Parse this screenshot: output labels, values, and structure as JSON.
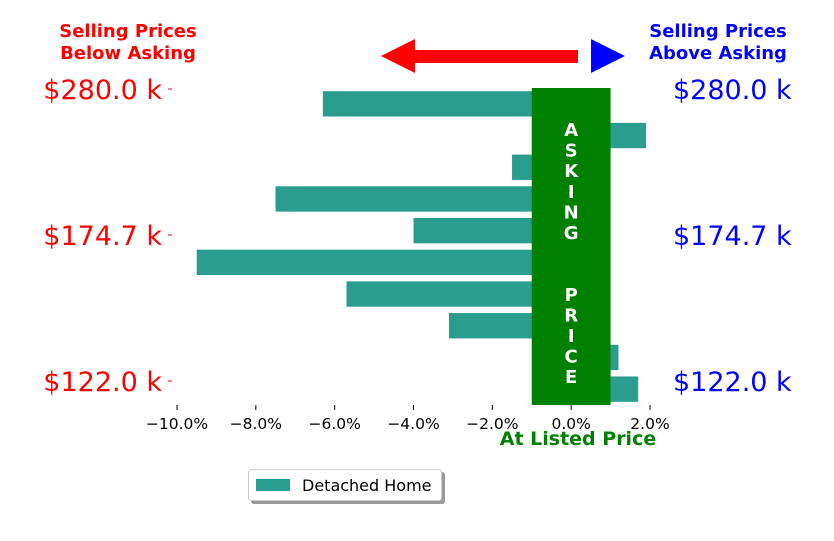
{
  "header": {
    "below_asking": "Selling Prices\nBelow Asking",
    "above_asking": "Selling Prices\nAbove Asking"
  },
  "colors": {
    "bar": "#2a9d8f",
    "asking_band": "#008000",
    "below": "#ff0000",
    "above": "#0000ff",
    "arrow_left": "#ff0000",
    "arrow_right": "#0000ff"
  },
  "icons": {
    "left": "left-arrow-icon",
    "right": "right-arrow-icon"
  },
  "chart_data": {
    "type": "bar",
    "orientation": "horizontal",
    "x_axis": {
      "xlim": [
        -10.0,
        2.0
      ],
      "ticks": [
        -10.0,
        -8.0,
        -6.0,
        -4.0,
        -2.0,
        0.0,
        2.0
      ],
      "tick_labels": [
        "−10.0%",
        "−8.0%",
        "−6.0%",
        "−4.0%",
        "−2.0%",
        "0.0%",
        "2.0%"
      ],
      "xlabel": "At Listed Price"
    },
    "y_axis": {
      "left_tick_labels": [
        "$280.0 k",
        "$174.7 k",
        "$122.0 k"
      ],
      "right_tick_labels": [
        "$280.0 k",
        "$174.7 k",
        "$122.0 k"
      ]
    },
    "series": [
      {
        "name": "Detached Home",
        "values": [
          -6.3,
          1.9,
          -1.5,
          -7.5,
          -4.0,
          -9.5,
          -5.7,
          -3.1,
          1.2,
          1.7
        ]
      }
    ],
    "asking_band": {
      "label": "ASKING  PRICE",
      "x_range": [
        -1.0,
        1.0
      ]
    },
    "legend": {
      "placement": "bottom-center",
      "entries": [
        "Detached Home"
      ]
    },
    "grid": false
  }
}
